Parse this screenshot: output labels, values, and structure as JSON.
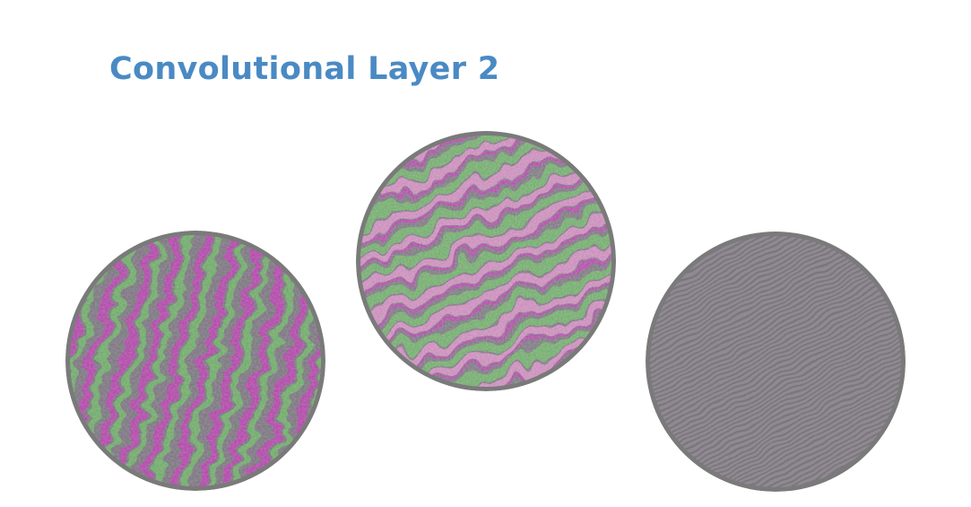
{
  "slide": {
    "title": "Convolutional Layer 2"
  },
  "colors": {
    "title": "#4a8ac4",
    "ring": "#7a7a7a",
    "field": "#8f8a90",
    "magenta": "#b04aa8",
    "green": "#6faa6a",
    "pink": "#c98ab9",
    "gray_stripe": "#7c7480"
  },
  "visualizations": [
    {
      "id": "left",
      "pattern": "magenta-green-vertical-stripes"
    },
    {
      "id": "middle",
      "pattern": "green-pink-diagonal-bands"
    },
    {
      "id": "right",
      "pattern": "fine-gray-diagonal-stripes"
    }
  ]
}
